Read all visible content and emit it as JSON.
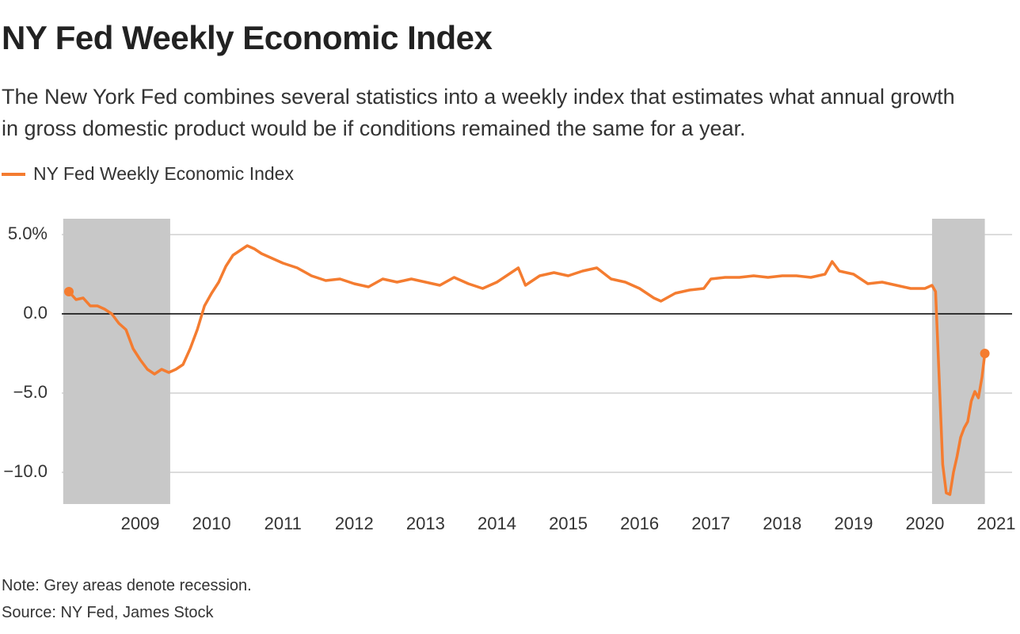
{
  "chart_data": {
    "type": "line",
    "title": "NY Fed Weekly Economic Index",
    "subtitle": "The New York Fed combines several statistics into a weekly index that estimates what annual growth in gross domestic product would be if conditions remained the same for a year.",
    "note": "Note: Grey areas denote recession.",
    "source": "Source: NY Fed, James Stock",
    "x": [
      2008.0,
      2008.1,
      2008.2,
      2008.3,
      2008.4,
      2008.5,
      2008.6,
      2008.7,
      2008.8,
      2008.9,
      2009.0,
      2009.1,
      2009.2,
      2009.3,
      2009.4,
      2009.5,
      2009.6,
      2009.7,
      2009.8,
      2009.9,
      2010.0,
      2010.1,
      2010.2,
      2010.3,
      2010.4,
      2010.5,
      2010.6,
      2010.7,
      2010.8,
      2010.9,
      2011.0,
      2011.2,
      2011.4,
      2011.6,
      2011.8,
      2012.0,
      2012.2,
      2012.4,
      2012.6,
      2012.8,
      2013.0,
      2013.2,
      2013.4,
      2013.6,
      2013.8,
      2014.0,
      2014.2,
      2014.3,
      2014.4,
      2014.6,
      2014.8,
      2015.0,
      2015.2,
      2015.4,
      2015.6,
      2015.8,
      2016.0,
      2016.2,
      2016.3,
      2016.5,
      2016.7,
      2016.9,
      2017.0,
      2017.2,
      2017.4,
      2017.6,
      2017.8,
      2018.0,
      2018.2,
      2018.4,
      2018.6,
      2018.7,
      2018.8,
      2019.0,
      2019.2,
      2019.4,
      2019.6,
      2019.8,
      2020.0,
      2020.1,
      2020.15,
      2020.2,
      2020.25,
      2020.3,
      2020.35,
      2020.4,
      2020.45,
      2020.5,
      2020.55,
      2020.6,
      2020.65,
      2020.7,
      2020.75,
      2020.8,
      2020.84
    ],
    "series": [
      {
        "name": "NY Fed Weekly Economic Index",
        "color": "#f47c30",
        "values": [
          1.4,
          0.9,
          1.0,
          0.5,
          0.5,
          0.3,
          0.0,
          -0.6,
          -1.0,
          -2.2,
          -2.9,
          -3.5,
          -3.8,
          -3.5,
          -3.7,
          -3.5,
          -3.2,
          -2.2,
          -1.0,
          0.5,
          1.3,
          2.0,
          3.0,
          3.7,
          4.0,
          4.3,
          4.1,
          3.8,
          3.6,
          3.4,
          3.2,
          2.9,
          2.4,
          2.1,
          2.2,
          1.9,
          1.7,
          2.2,
          2.0,
          2.2,
          2.0,
          1.8,
          2.3,
          1.9,
          1.6,
          2.0,
          2.6,
          2.9,
          1.8,
          2.4,
          2.6,
          2.4,
          2.7,
          2.9,
          2.2,
          2.0,
          1.6,
          1.0,
          0.8,
          1.3,
          1.5,
          1.6,
          2.2,
          2.3,
          2.3,
          2.4,
          2.3,
          2.4,
          2.4,
          2.3,
          2.5,
          3.3,
          2.7,
          2.5,
          1.9,
          2.0,
          1.8,
          1.6,
          1.6,
          1.8,
          1.4,
          -4.0,
          -9.5,
          -11.3,
          -11.4,
          -10.0,
          -9.0,
          -7.8,
          -7.2,
          -6.8,
          -5.5,
          -4.9,
          -5.3,
          -4.0,
          -2.5
        ]
      }
    ],
    "recessions": [
      {
        "start": 2007.92,
        "end": 2009.42
      },
      {
        "start": 2020.1,
        "end": 2020.84
      }
    ],
    "recession_color": "#c8c8c8",
    "xlim": [
      2007.9,
      2021.0
    ],
    "xticks": [
      2009,
      2010,
      2011,
      2012,
      2013,
      2014,
      2015,
      2016,
      2017,
      2018,
      2019,
      2020,
      2021
    ],
    "ylim": [
      -12,
      6
    ],
    "yticks": [
      {
        "value": 5,
        "label": "5.0%"
      },
      {
        "value": 0,
        "label": "0.0"
      },
      {
        "value": -5,
        "label": "−5.0"
      },
      {
        "value": -10,
        "label": "−10.0"
      }
    ],
    "grid": true
  }
}
